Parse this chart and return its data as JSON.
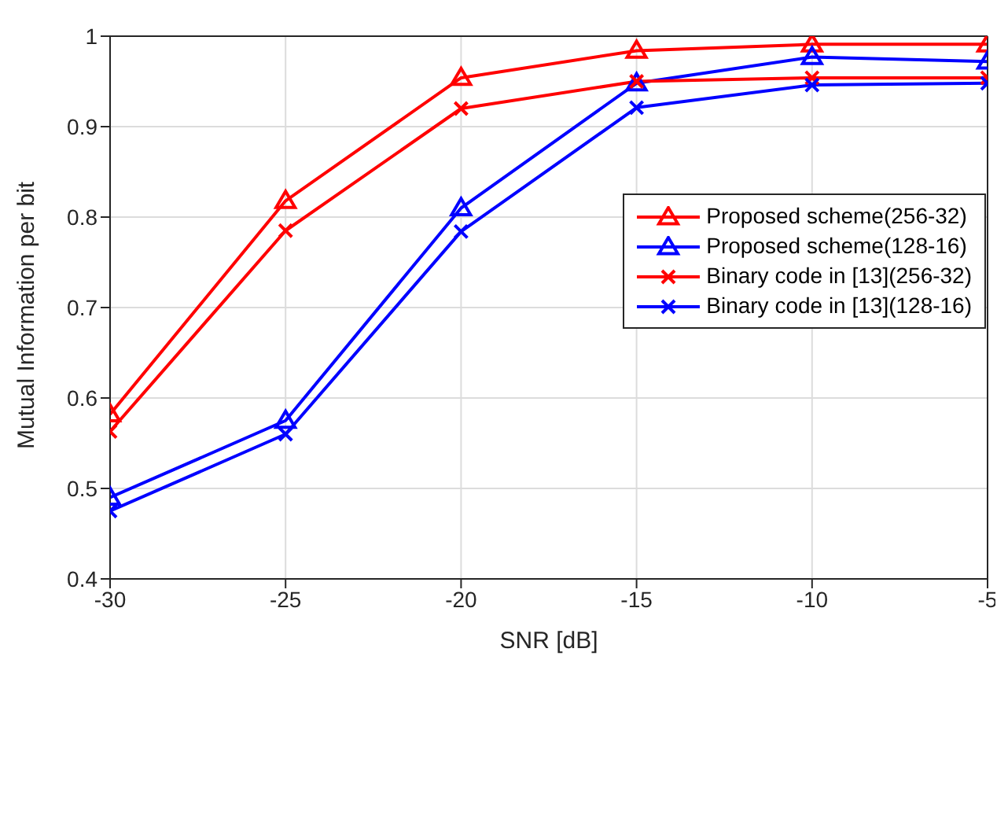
{
  "chart_data": {
    "type": "line",
    "xlabel": "SNR [dB]",
    "ylabel": "Mutual Information per bit",
    "x": [
      -30,
      -25,
      -20,
      -15,
      -10,
      -5
    ],
    "series": [
      {
        "name": "Proposed scheme(256-32)",
        "color": "#ff0000",
        "marker": "triangle",
        "values": [
          0.582,
          0.818,
          0.954,
          0.984,
          0.991,
          0.991
        ]
      },
      {
        "name": "Proposed scheme(128-16)",
        "color": "#0000ff",
        "marker": "triangle",
        "values": [
          0.49,
          0.575,
          0.81,
          0.948,
          0.977,
          0.972
        ]
      },
      {
        "name": "Binary code in [13](256-32)",
        "color": "#ff0000",
        "marker": "cross",
        "values": [
          0.563,
          0.785,
          0.92,
          0.95,
          0.954,
          0.954
        ]
      },
      {
        "name": "Binary code in [13](128-16)",
        "color": "#0000ff",
        "marker": "cross",
        "values": [
          0.475,
          0.56,
          0.784,
          0.921,
          0.946,
          0.948
        ]
      }
    ],
    "xlim": [
      -30,
      -5
    ],
    "xticks": [
      -30,
      -25,
      -20,
      -15,
      -10,
      -5
    ],
    "ylim": [
      0.4,
      1
    ],
    "yticks": [
      0.4,
      0.5,
      0.6,
      0.7,
      0.8,
      0.9,
      1
    ],
    "grid": true,
    "legend": "right",
    "line_style": "solid"
  }
}
